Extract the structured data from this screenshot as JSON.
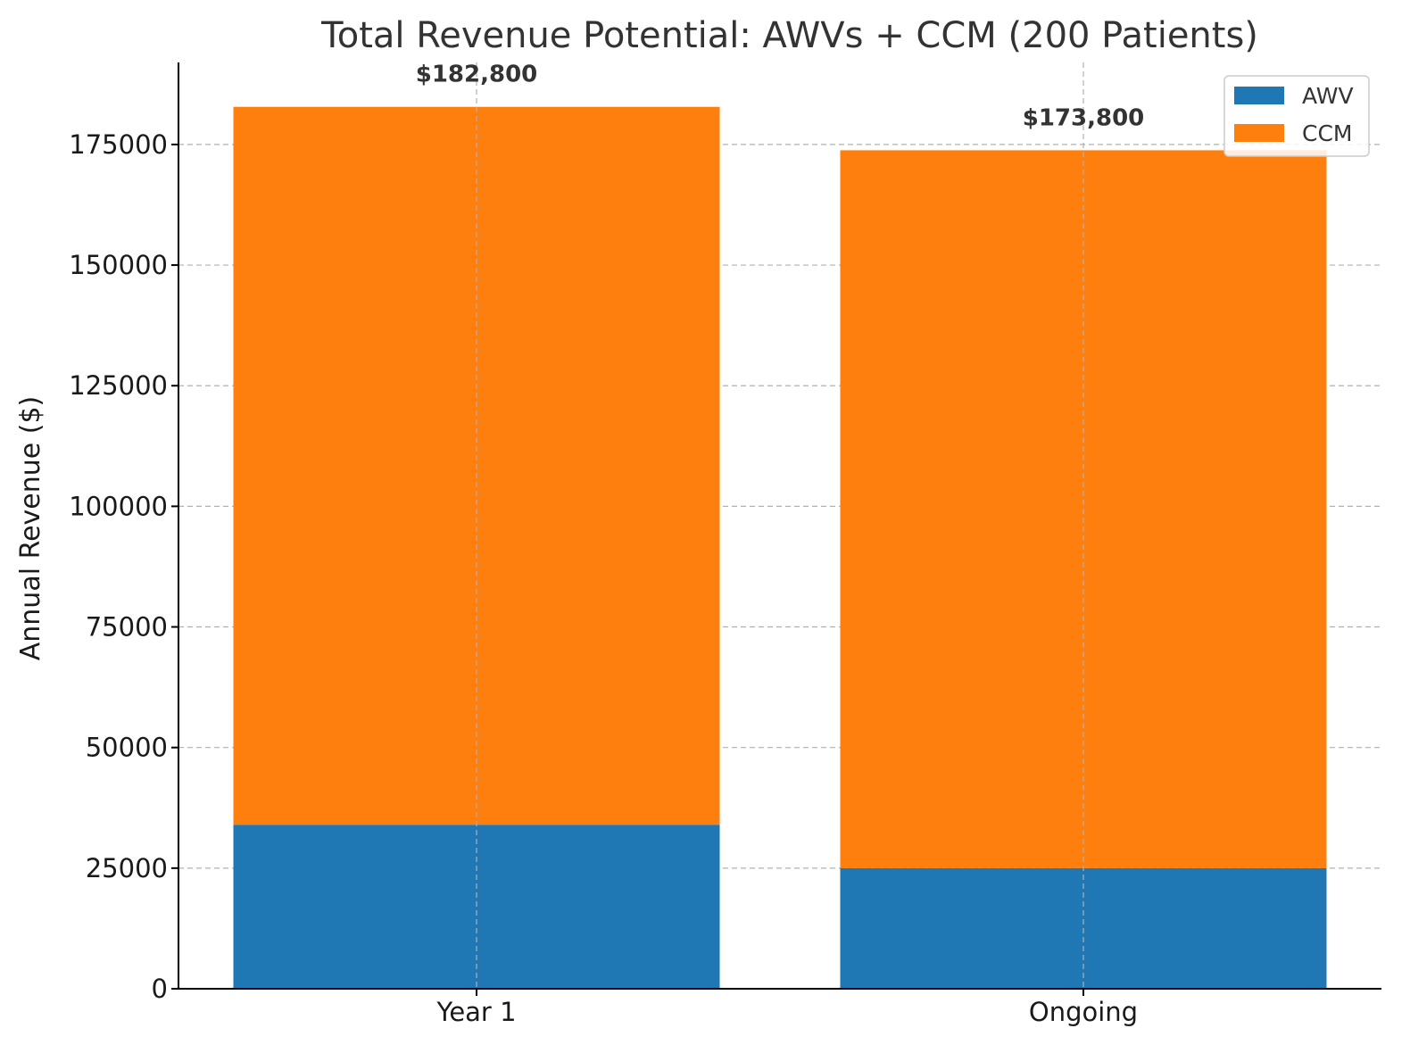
{
  "chart_data": {
    "type": "bar",
    "stacked": true,
    "title": "Total Revenue Potential: AWVs + CCM (200 Patients)",
    "xlabel": "",
    "ylabel": "Annual Revenue ($)",
    "categories": [
      "Year 1",
      "Ongoing"
    ],
    "series": [
      {
        "name": "AWV",
        "color": "#1f77b4",
        "values": [
          34000,
          25000
        ]
      },
      {
        "name": "CCM",
        "color": "#ff7f0e",
        "values": [
          148800,
          148800
        ]
      }
    ],
    "totals": [
      "$182,800",
      "$173,800"
    ],
    "ylim": [
      0,
      192000
    ],
    "yticks": [
      0,
      25000,
      50000,
      75000,
      100000,
      125000,
      150000,
      175000
    ],
    "grid": true,
    "legend_position": "top-right"
  }
}
